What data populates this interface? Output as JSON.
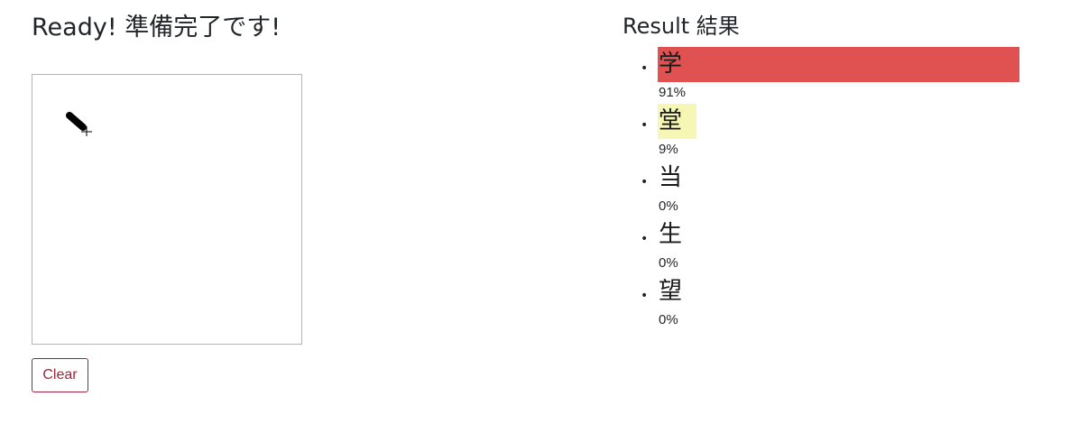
{
  "header": {
    "title": "Ready! 準備完了です!"
  },
  "drawing": {
    "clear_label": "Clear"
  },
  "result": {
    "title": "Result 結果",
    "items": [
      {
        "char": "学",
        "percent": "91%",
        "fraction": 0.91,
        "color": "#e05252"
      },
      {
        "char": "堂",
        "percent": "9%",
        "fraction": 0.09,
        "color": "#f7f7b5"
      },
      {
        "char": "当",
        "percent": "0%",
        "fraction": 0.0,
        "color": "#ffffff"
      },
      {
        "char": "生",
        "percent": "0%",
        "fraction": 0.0,
        "color": "#ffffff"
      },
      {
        "char": "望",
        "percent": "0%",
        "fraction": 0.0,
        "color": "#ffffff"
      }
    ]
  }
}
